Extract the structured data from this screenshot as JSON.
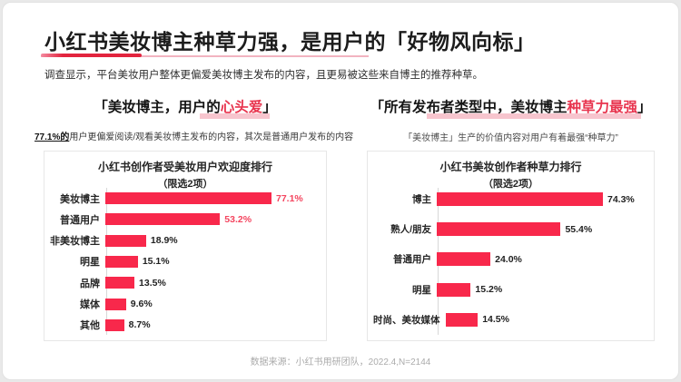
{
  "slide": {
    "title": "小红书美妆博主种草力强，是用户的「好物风向标」",
    "subtitle": "调查显示，平台美妆用户整体更偏爱美妆博主发布的内容，且更易被这些来自博主的推荐种草。",
    "footer": "数据来源：小红书用研团队，2022.4,N=2144"
  },
  "left_section": {
    "heading_prefix": "「美妆博主，用户的",
    "heading_highlight": "心头爱",
    "heading_suffix": "」",
    "caption_bold": "77.1%的",
    "caption_rest": "用户更偏爱阅读/观看美妆博主发布的内容，其次是普通用户发布的内容"
  },
  "right_section": {
    "heading_prefix": "「所有发布者类型中，美妆博主",
    "heading_highlight": "种草力最强",
    "heading_suffix": "」",
    "caption": "「美妆博主」生产的价值内容对用户有着最强“种草力”"
  },
  "colors": {
    "bar_red": "#F8284B",
    "accent_red": "#E8344E",
    "highlight_pink": "#F7C5CE",
    "value_label_red": "#F4455F",
    "title_underline_red": "#E2243E",
    "title_underline_pink": "#F2B3C0"
  },
  "chart_data": [
    {
      "type": "bar",
      "orientation": "horizontal",
      "title": "小红书创作者受美妆用户欢迎度排行",
      "subtitle": "（限选2项）",
      "categories": [
        "美妆博主",
        "普通用户",
        "非美妆博主",
        "明星",
        "品牌",
        "媒体",
        "其他"
      ],
      "values": [
        77.1,
        53.2,
        18.9,
        15.1,
        13.5,
        9.6,
        8.7
      ],
      "value_labels": [
        "77.1%",
        "53.2%",
        "18.9%",
        "15.1%",
        "13.5%",
        "9.6%",
        "8.7%"
      ],
      "highlight_label_indices": [
        0,
        1
      ],
      "xlim": [
        0,
        80
      ],
      "grid": false,
      "legend": "none",
      "bar_color": "#F8284B"
    },
    {
      "type": "bar",
      "orientation": "horizontal",
      "title": "小红书美妆创作者种草力排行",
      "subtitle": "（限选2项）",
      "categories": [
        "博主",
        "熟人/朋友",
        "普通用户",
        "明星",
        "时尚、美妆媒体"
      ],
      "values": [
        74.3,
        55.4,
        24.0,
        15.2,
        14.5
      ],
      "value_labels": [
        "74.3%",
        "55.4%",
        "24.0%",
        "15.2%",
        "14.5%"
      ],
      "highlight_label_indices": [],
      "xlim": [
        0,
        80
      ],
      "grid": false,
      "legend": "none",
      "bar_color": "#F8284B"
    }
  ]
}
